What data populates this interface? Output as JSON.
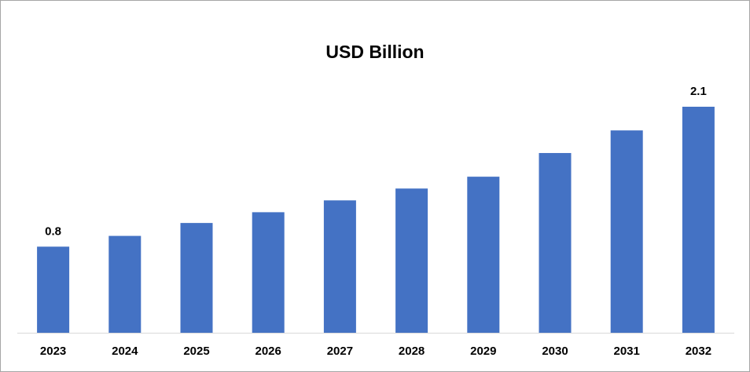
{
  "chart_data": {
    "type": "bar",
    "title": "USD Billion",
    "categories": [
      "2023",
      "2024",
      "2025",
      "2026",
      "2027",
      "2028",
      "2029",
      "2030",
      "2031",
      "2032"
    ],
    "values": [
      0.8,
      0.9,
      1.02,
      1.12,
      1.23,
      1.34,
      1.45,
      1.67,
      1.88,
      2.1
    ],
    "value_labels": [
      "0.8",
      null,
      null,
      null,
      null,
      null,
      null,
      null,
      null,
      "2.1"
    ],
    "color": "#4472c4"
  }
}
